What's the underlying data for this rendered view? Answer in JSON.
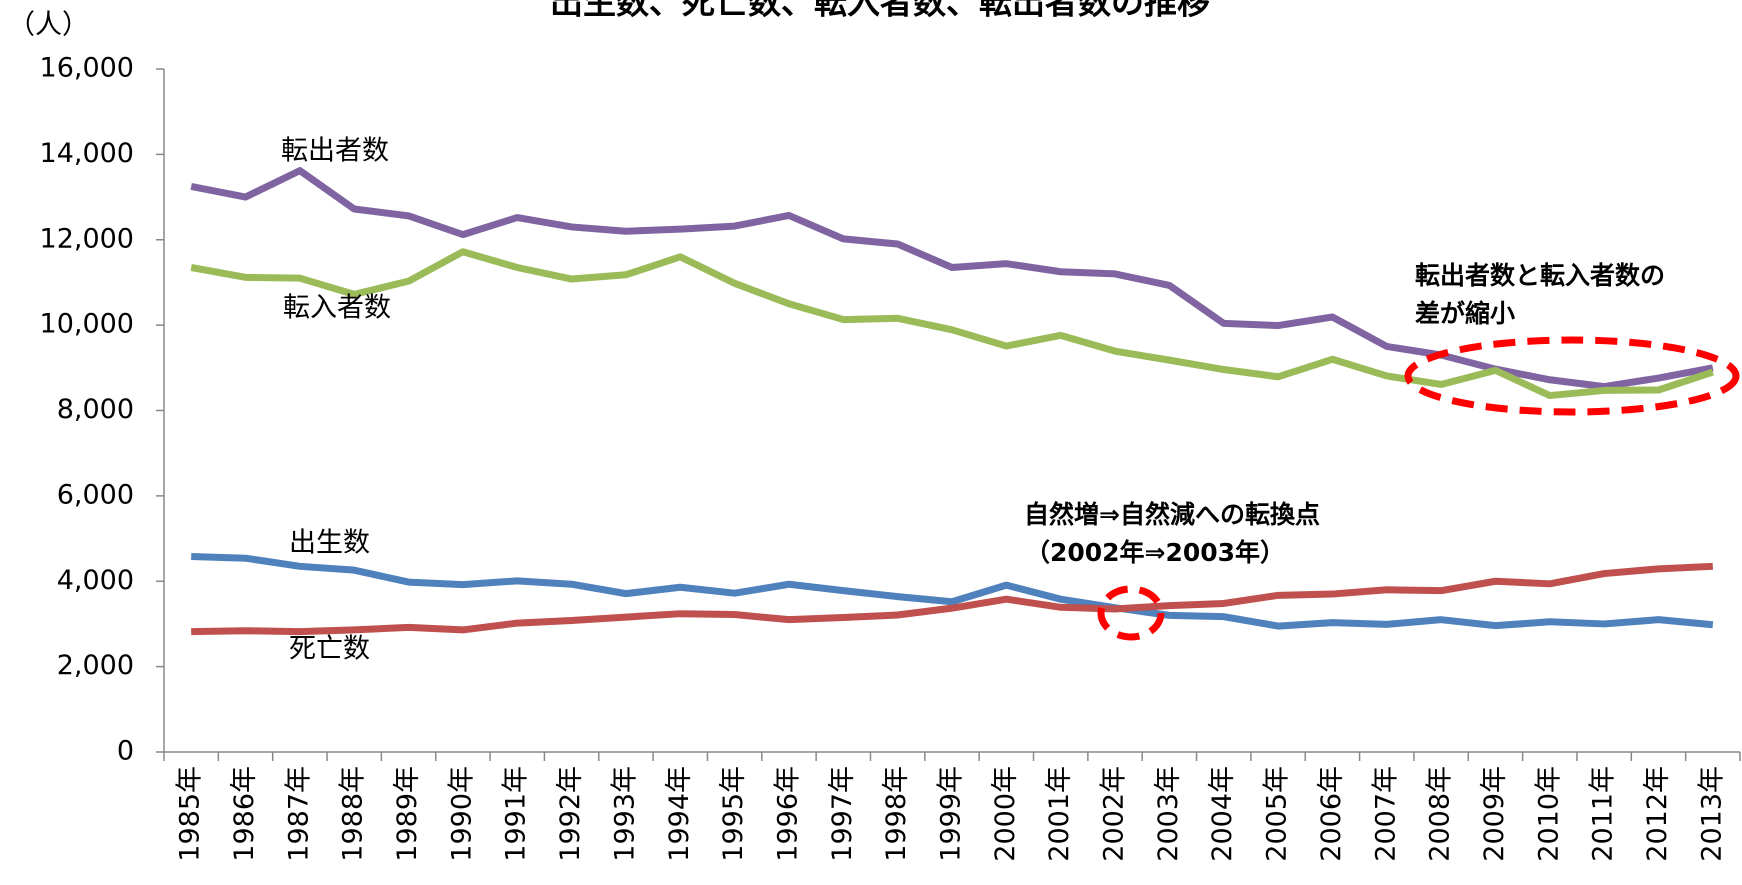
{
  "chart_data": {
    "type": "line",
    "title": "出生数、死亡数、転入者数、転出者数の推移",
    "y_unit": "（人）",
    "categories": [
      "1985年",
      "1986年",
      "1987年",
      "1988年",
      "1989年",
      "1990年",
      "1991年",
      "1992年",
      "1993年",
      "1994年",
      "1995年",
      "1996年",
      "1997年",
      "1998年",
      "1999年",
      "2000年",
      "2001年",
      "2002年",
      "2003年",
      "2004年",
      "2005年",
      "2006年",
      "2007年",
      "2008年",
      "2009年",
      "2010年",
      "2011年",
      "2012年",
      "2013年"
    ],
    "series": [
      {
        "name": "転出者数",
        "color": "#8064a2",
        "values": [
          13250,
          13000,
          13620,
          12720,
          12560,
          12120,
          12520,
          12300,
          12200,
          12250,
          12320,
          12570,
          12020,
          11900,
          11350,
          11440,
          11250,
          11200,
          10930,
          10040,
          9990,
          10190,
          9500,
          9300,
          8970,
          8720,
          8560,
          8760,
          9000
        ]
      },
      {
        "name": "転入者数",
        "color": "#9bbb59",
        "values": [
          11350,
          11120,
          11100,
          10720,
          11030,
          11720,
          11350,
          11080,
          11180,
          11600,
          10980,
          10500,
          10130,
          10160,
          9890,
          9510,
          9760,
          9390,
          9180,
          8960,
          8790,
          9200,
          8810,
          8610,
          8940,
          8350,
          8470,
          8480,
          8900
        ]
      },
      {
        "name": "出生数",
        "color": "#4f81bd",
        "values": [
          4580,
          4540,
          4350,
          4260,
          3980,
          3920,
          4010,
          3930,
          3710,
          3860,
          3720,
          3930,
          3780,
          3640,
          3520,
          3910,
          3580,
          3380,
          3200,
          3170,
          2950,
          3030,
          2990,
          3100,
          2960,
          3050,
          3000,
          3100,
          2980
        ]
      },
      {
        "name": "死亡数",
        "color": "#c0504d",
        "values": [
          2820,
          2840,
          2820,
          2860,
          2920,
          2860,
          3020,
          3080,
          3160,
          3240,
          3220,
          3100,
          3150,
          3210,
          3370,
          3580,
          3390,
          3350,
          3430,
          3480,
          3670,
          3700,
          3800,
          3780,
          4000,
          3940,
          4180,
          4290,
          4350
        ]
      }
    ],
    "annotations": [
      "自然増⇒自然減への転換点",
      "（2002年⇒2003年）",
      "転出者数と転入者数の",
      "差が縮小"
    ],
    "ylim": [
      0,
      16000
    ],
    "yticks": [
      0,
      {
        "value": 2000,
        "label": "2,000"
      },
      {
        "value": 4000,
        "label": "4,000"
      },
      {
        "value": 6000,
        "label": "6,000"
      },
      {
        "value": 8000,
        "label": "8,000"
      },
      {
        "value": 10000,
        "label": "10,000"
      },
      {
        "value": 12000,
        "label": "12,000"
      },
      {
        "value": 14000,
        "label": "14,000"
      },
      {
        "value": 16000,
        "label": "16,000"
      }
    ],
    "grid": false
  }
}
